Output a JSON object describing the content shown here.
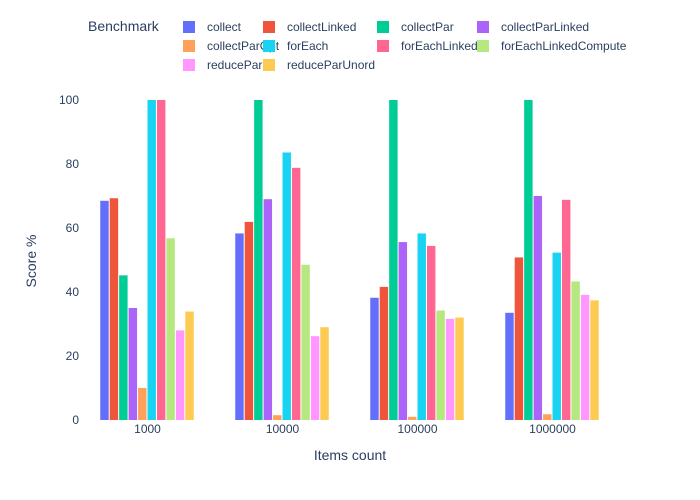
{
  "chart_data": {
    "type": "bar",
    "xlabel": "Items count",
    "ylabel": "Score %",
    "ylim": [
      0,
      100
    ],
    "yticks": [
      0,
      20,
      40,
      60,
      80,
      100
    ],
    "grid": false,
    "legend": {
      "title": "Benchmark",
      "placement": "top"
    },
    "categories": [
      "1000",
      "10000",
      "100000",
      "1000000"
    ],
    "series": [
      {
        "name": "collect",
        "color": "#636efa",
        "values": [
          68.5,
          58.3,
          38.2,
          33.5
        ]
      },
      {
        "name": "collectLinked",
        "color": "#ef553b",
        "values": [
          69.3,
          61.9,
          41.6,
          50.8
        ]
      },
      {
        "name": "collectPar",
        "color": "#00cc96",
        "values": [
          45.2,
          100,
          100,
          100
        ]
      },
      {
        "name": "collectParLinked",
        "color": "#ab63fa",
        "values": [
          35.0,
          69.0,
          55.6,
          70.0
        ]
      },
      {
        "name": "collectParOpt",
        "color": "#ffa15a",
        "values": [
          10.0,
          1.5,
          1.0,
          1.8
        ]
      },
      {
        "name": "forEach",
        "color": "#19d3f3",
        "values": [
          100,
          83.6,
          58.3,
          52.3
        ]
      },
      {
        "name": "forEachLinked",
        "color": "#ff6692",
        "values": [
          100,
          78.8,
          54.4,
          68.8
        ]
      },
      {
        "name": "forEachLinkedCompute",
        "color": "#b6e880",
        "values": [
          56.8,
          48.5,
          34.2,
          43.3
        ]
      },
      {
        "name": "reducePar",
        "color": "#ff97ff",
        "values": [
          28.0,
          26.2,
          31.6,
          39.1
        ]
      },
      {
        "name": "reduceParUnord",
        "color": "#fecb52",
        "values": [
          33.9,
          29.0,
          32.0,
          37.4
        ]
      }
    ]
  }
}
